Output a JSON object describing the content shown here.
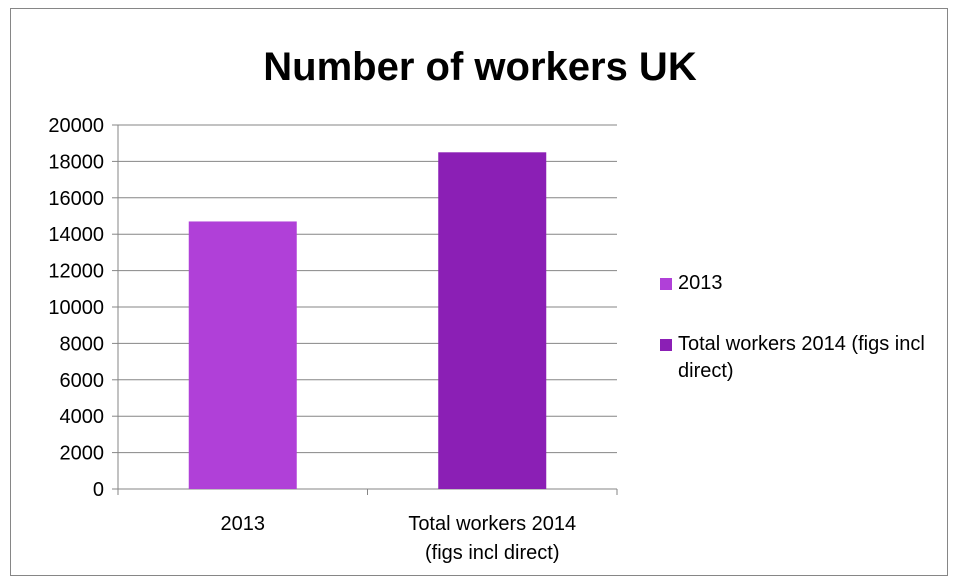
{
  "chart_data": {
    "type": "bar",
    "title": "Number of workers UK",
    "categories": [
      "2013",
      "Total workers 2014 (figs incl direct)"
    ],
    "category_lines": [
      [
        "2013"
      ],
      [
        "Total workers 2014",
        "(figs incl direct)"
      ]
    ],
    "values": [
      14700,
      18500
    ],
    "colors": [
      "#b040d8",
      "#8b1fb5"
    ],
    "ylim": [
      0,
      20000
    ],
    "yticks": [
      0,
      2000,
      4000,
      6000,
      8000,
      10000,
      12000,
      14000,
      16000,
      18000,
      20000
    ],
    "grid": true,
    "legend_position": "right",
    "legend": [
      {
        "label": "2013",
        "color": "#b040d8"
      },
      {
        "label": "Total workers 2014 (figs incl direct)",
        "color": "#8b1fb5"
      }
    ]
  }
}
